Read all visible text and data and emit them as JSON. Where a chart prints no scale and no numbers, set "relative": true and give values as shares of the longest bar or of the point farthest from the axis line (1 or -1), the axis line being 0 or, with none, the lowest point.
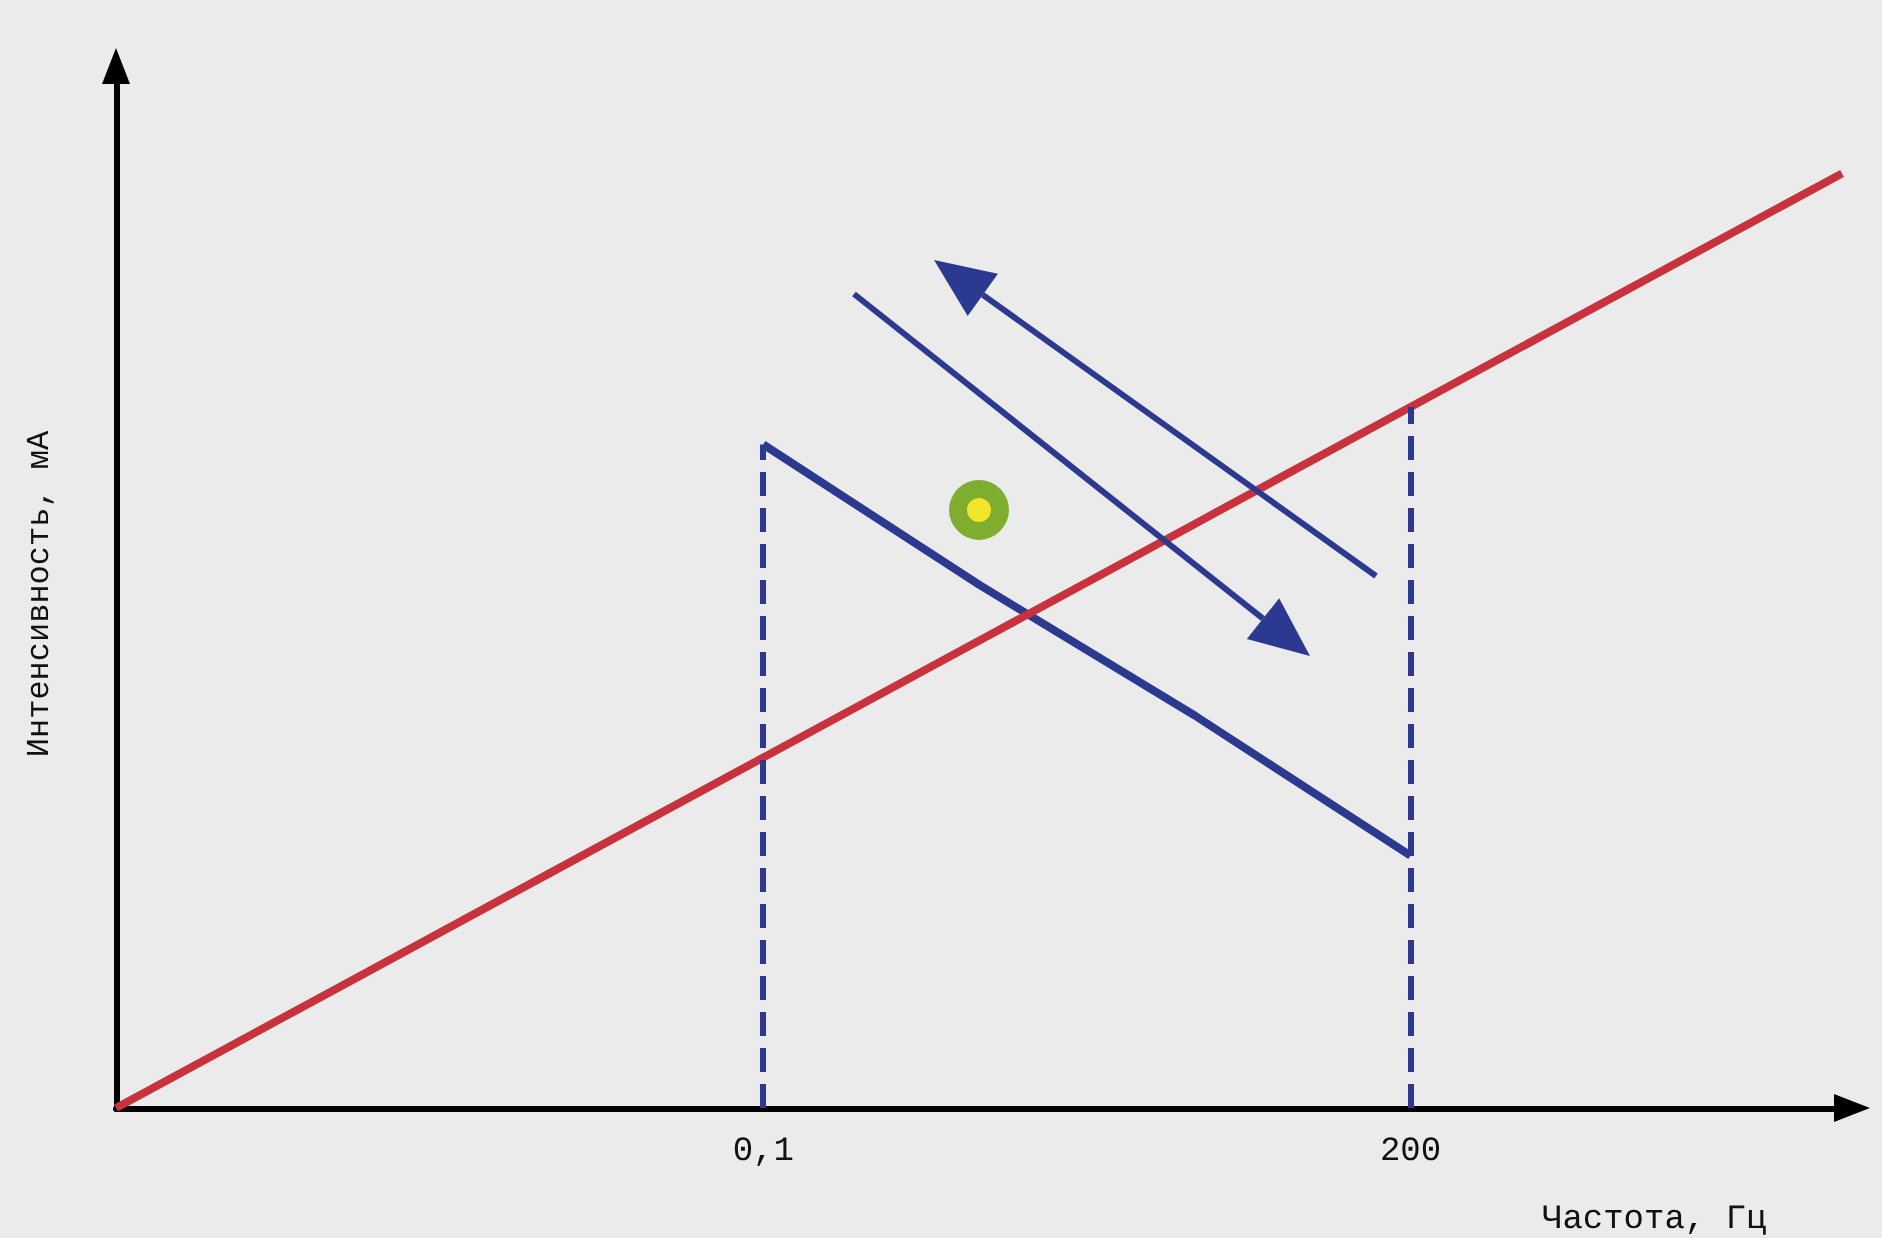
{
  "chart_data": {
    "type": "line",
    "xlabel": "Частота, Гц",
    "ylabel": "Интенсивность, мА",
    "relative": true,
    "categories": [
      null,
      null,
      null,
      "0,1",
      null,
      null,
      "200",
      null,
      null
    ],
    "series": [
      {
        "color": "#c8323c",
        "values": [
          0,
          0.125,
          0.25,
          0.375,
          0.5,
          0.625,
          0.75,
          0.875,
          1
        ]
      },
      {
        "color": "#2b3990",
        "values": [
          null,
          null,
          null,
          0.71,
          0.56,
          0.42,
          0.27,
          null,
          null
        ]
      }
    ],
    "ref_lines": [
      {
        "axis": "x",
        "value": "0,1",
        "color": "#2b3990",
        "line_style": "dashed"
      },
      {
        "axis": "x",
        "value": "200",
        "color": "#2b3990",
        "line_style": "dashed"
      }
    ],
    "marker": "none",
    "line_style": "solid",
    "grid": false,
    "tick_labels": "x"
  }
}
